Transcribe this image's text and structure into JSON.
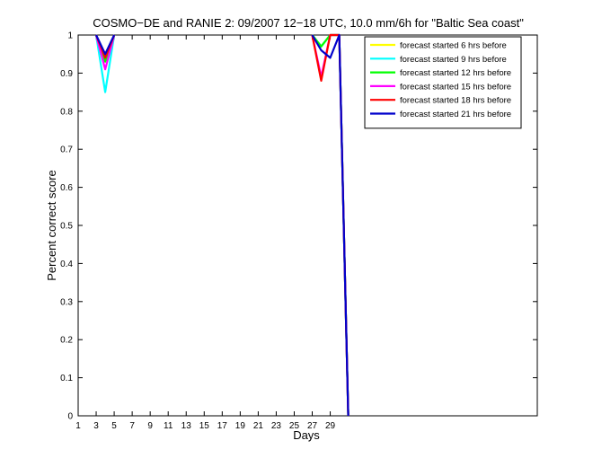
{
  "chart_data": {
    "type": "line",
    "title": "COSMO−DE and RANIE 2: 09/2007 12−18 UTC, 10.0 mm/6h for \"Baltic Sea coast\"",
    "xlabel": "Days",
    "ylabel": "Percent correct score",
    "xlim": [
      1,
      52
    ],
    "ylim": [
      0,
      1
    ],
    "xticks": [
      1,
      3,
      5,
      7,
      9,
      11,
      13,
      15,
      17,
      19,
      21,
      23,
      25,
      27,
      29
    ],
    "yticks": [
      0,
      0.1,
      0.2,
      0.3,
      0.4,
      0.5,
      0.6,
      0.7,
      0.8,
      0.9,
      1
    ],
    "xtick_labels": [
      "1",
      "3",
      "5",
      "7",
      "9",
      "11",
      "13",
      "15",
      "17",
      "19",
      "21",
      "23",
      "25",
      "27",
      "29"
    ],
    "ytick_labels": [
      "0",
      "0.1",
      "0.2",
      "0.3",
      "0.4",
      "0.5",
      "0.6",
      "0.7",
      "0.8",
      "0.9",
      "1"
    ],
    "grid": false,
    "legend_position": "top-right",
    "series": [
      {
        "name": "forecast started 6 hrs before",
        "color": "#ffff00",
        "segments": [
          [
            [
              3,
              1
            ],
            [
              4,
              0.94
            ],
            [
              5,
              1
            ]
          ],
          [
            [
              27,
              1
            ],
            [
              28,
              0.97
            ],
            [
              29,
              1
            ],
            [
              30,
              1
            ],
            [
              31,
              0
            ]
          ]
        ]
      },
      {
        "name": "forecast started 9 hrs before",
        "color": "#00ffff",
        "segments": [
          [
            [
              3,
              1
            ],
            [
              4,
              0.85
            ],
            [
              5,
              1
            ]
          ],
          [
            [
              27,
              1
            ],
            [
              28,
              0.97
            ],
            [
              29,
              1
            ],
            [
              30,
              1
            ],
            [
              31,
              0
            ]
          ]
        ]
      },
      {
        "name": "forecast started 12 hrs before",
        "color": "#00ff00",
        "segments": [
          [
            [
              3,
              1
            ],
            [
              4,
              0.93
            ],
            [
              5,
              1
            ]
          ],
          [
            [
              27,
              1
            ],
            [
              28,
              0.97
            ],
            [
              29,
              1
            ],
            [
              30,
              1
            ],
            [
              31,
              0
            ]
          ]
        ]
      },
      {
        "name": "forecast started 15 hrs before",
        "color": "#ff00ff",
        "segments": [
          [
            [
              3,
              1
            ],
            [
              4,
              0.91
            ],
            [
              5,
              1
            ]
          ],
          [
            [
              27,
              1
            ],
            [
              28,
              0.89
            ],
            [
              29,
              1
            ],
            [
              30,
              1
            ],
            [
              31,
              0
            ]
          ]
        ]
      },
      {
        "name": "forecast started 18 hrs before",
        "color": "#ff0000",
        "segments": [
          [
            [
              3,
              1
            ],
            [
              4,
              0.94
            ],
            [
              5,
              1
            ]
          ],
          [
            [
              27,
              1
            ],
            [
              28,
              0.88
            ],
            [
              29,
              1
            ],
            [
              30,
              1
            ],
            [
              31,
              0
            ]
          ]
        ]
      },
      {
        "name": "forecast started 21 hrs before",
        "color": "#0000cc",
        "segments": [
          [
            [
              3,
              1
            ],
            [
              4,
              0.95
            ],
            [
              5,
              1
            ]
          ],
          [
            [
              27,
              1
            ],
            [
              28,
              0.96
            ],
            [
              29,
              0.94
            ],
            [
              30,
              1
            ],
            [
              31,
              0
            ]
          ]
        ]
      }
    ]
  }
}
